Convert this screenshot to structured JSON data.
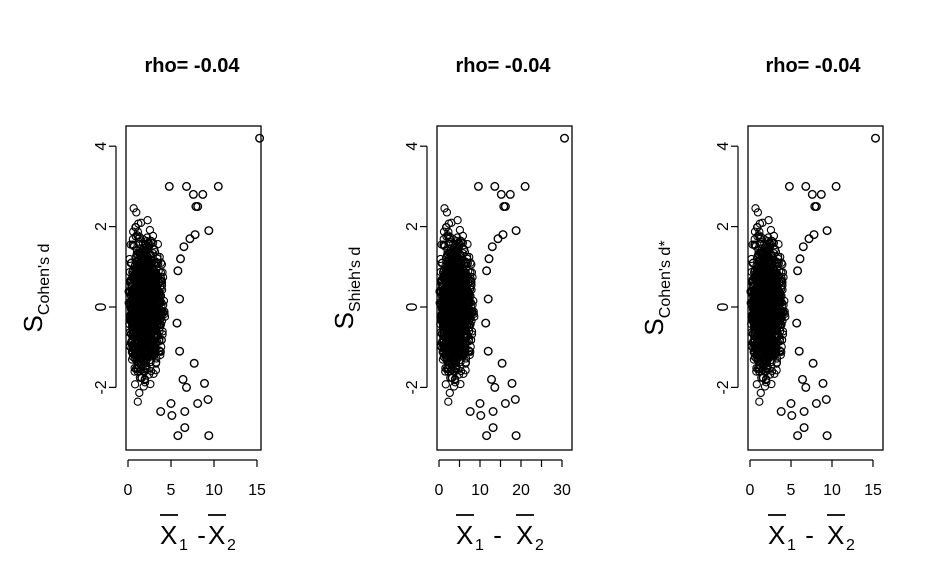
{
  "chart_data": [
    {
      "type": "scatter",
      "title": "rho= -0.04",
      "xlabel": {
        "var": "X",
        "sub1": "1",
        "minus": " - ",
        "sub2": "2"
      },
      "ylabel": {
        "base": "S",
        "sub": "Cohen's d"
      },
      "xlim": [
        0,
        15.5
      ],
      "ylim": [
        -3.5,
        4.5
      ],
      "xticks": [
        0,
        5,
        10,
        15
      ],
      "yticks": [
        -2,
        0,
        2,
        4
      ],
      "grid": false,
      "outliers": [
        {
          "x": 15.3,
          "y": 4.2
        },
        {
          "x": 10.5,
          "y": 3.0
        },
        {
          "x": 4.8,
          "y": 3.0
        },
        {
          "x": 6.8,
          "y": 3.0
        },
        {
          "x": 7.6,
          "y": 2.8
        },
        {
          "x": 8.7,
          "y": 2.8
        },
        {
          "x": 7.9,
          "y": 2.5
        },
        {
          "x": 8.1,
          "y": 2.5
        },
        {
          "x": 9.4,
          "y": 1.9
        },
        {
          "x": 7.8,
          "y": 1.8
        },
        {
          "x": 7.2,
          "y": 1.7
        },
        {
          "x": 6.5,
          "y": 1.5
        },
        {
          "x": 6.1,
          "y": 1.2
        },
        {
          "x": 5.8,
          "y": 0.9
        },
        {
          "x": 6.0,
          "y": 0.2
        },
        {
          "x": 5.7,
          "y": -0.4
        },
        {
          "x": 6.0,
          "y": -1.1
        },
        {
          "x": 7.7,
          "y": -1.4
        },
        {
          "x": 6.4,
          "y": -1.8
        },
        {
          "x": 6.8,
          "y": -2.0
        },
        {
          "x": 8.9,
          "y": -1.9
        },
        {
          "x": 8.1,
          "y": -2.4
        },
        {
          "x": 9.3,
          "y": -2.3
        },
        {
          "x": 5.0,
          "y": -2.4
        },
        {
          "x": 6.6,
          "y": -2.6
        },
        {
          "x": 3.8,
          "y": -2.6
        },
        {
          "x": 5.1,
          "y": -2.7
        },
        {
          "x": 6.6,
          "y": -3.0
        },
        {
          "x": 5.8,
          "y": -3.2
        },
        {
          "x": 9.4,
          "y": -3.2
        }
      ]
    },
    {
      "type": "scatter",
      "title": "rho= -0.04",
      "xlabel": {
        "var": "X",
        "sub1": "1",
        "minus": " - ",
        "sub2": "2"
      },
      "ylabel": {
        "base": "S",
        "sub": "Shieh's d"
      },
      "xlim": [
        0,
        31
      ],
      "ylim": [
        -3.5,
        4.5
      ],
      "xticks": [
        0,
        10,
        20,
        30
      ],
      "minor_xticks": [
        5,
        15,
        25
      ],
      "yticks": [
        -2,
        0,
        2,
        4
      ],
      "grid": false,
      "outliers": [
        {
          "x": 30.6,
          "y": 4.2
        },
        {
          "x": 21.0,
          "y": 3.0
        },
        {
          "x": 9.6,
          "y": 3.0
        },
        {
          "x": 13.6,
          "y": 3.0
        },
        {
          "x": 15.2,
          "y": 2.8
        },
        {
          "x": 17.4,
          "y": 2.8
        },
        {
          "x": 15.8,
          "y": 2.5
        },
        {
          "x": 16.2,
          "y": 2.5
        },
        {
          "x": 18.8,
          "y": 1.9
        },
        {
          "x": 15.6,
          "y": 1.8
        },
        {
          "x": 14.4,
          "y": 1.7
        },
        {
          "x": 13.0,
          "y": 1.5
        },
        {
          "x": 12.2,
          "y": 1.2
        },
        {
          "x": 11.6,
          "y": 0.9
        },
        {
          "x": 12.0,
          "y": 0.2
        },
        {
          "x": 11.4,
          "y": -0.4
        },
        {
          "x": 12.0,
          "y": -1.1
        },
        {
          "x": 15.4,
          "y": -1.4
        },
        {
          "x": 12.8,
          "y": -1.8
        },
        {
          "x": 13.6,
          "y": -2.0
        },
        {
          "x": 17.8,
          "y": -1.9
        },
        {
          "x": 16.2,
          "y": -2.4
        },
        {
          "x": 18.6,
          "y": -2.3
        },
        {
          "x": 10.0,
          "y": -2.4
        },
        {
          "x": 13.2,
          "y": -2.6
        },
        {
          "x": 7.6,
          "y": -2.6
        },
        {
          "x": 10.2,
          "y": -2.7
        },
        {
          "x": 13.2,
          "y": -3.0
        },
        {
          "x": 11.6,
          "y": -3.2
        },
        {
          "x": 18.8,
          "y": -3.2
        }
      ]
    },
    {
      "type": "scatter",
      "title": "rho= -0.04",
      "xlabel": {
        "var": "X",
        "sub1": "1",
        "minus": " - ",
        "sub2": "2"
      },
      "ylabel": {
        "base": "S",
        "sub": "Cohen's d*"
      },
      "xlim": [
        0,
        15.5
      ],
      "ylim": [
        -3.5,
        4.5
      ],
      "xticks": [
        0,
        5,
        10,
        15
      ],
      "yticks": [
        -2,
        0,
        2,
        4
      ],
      "grid": false,
      "outliers": [
        {
          "x": 15.3,
          "y": 4.2
        },
        {
          "x": 10.5,
          "y": 3.0
        },
        {
          "x": 4.8,
          "y": 3.0
        },
        {
          "x": 6.8,
          "y": 3.0
        },
        {
          "x": 7.6,
          "y": 2.8
        },
        {
          "x": 8.7,
          "y": 2.8
        },
        {
          "x": 7.9,
          "y": 2.5
        },
        {
          "x": 8.1,
          "y": 2.5
        },
        {
          "x": 9.4,
          "y": 1.9
        },
        {
          "x": 7.8,
          "y": 1.8
        },
        {
          "x": 7.2,
          "y": 1.7
        },
        {
          "x": 6.5,
          "y": 1.5
        },
        {
          "x": 6.1,
          "y": 1.2
        },
        {
          "x": 5.8,
          "y": 0.9
        },
        {
          "x": 6.0,
          "y": 0.2
        },
        {
          "x": 5.7,
          "y": -0.4
        },
        {
          "x": 6.0,
          "y": -1.1
        },
        {
          "x": 7.7,
          "y": -1.4
        },
        {
          "x": 6.4,
          "y": -1.8
        },
        {
          "x": 6.8,
          "y": -2.0
        },
        {
          "x": 8.9,
          "y": -1.9
        },
        {
          "x": 8.1,
          "y": -2.4
        },
        {
          "x": 9.3,
          "y": -2.3
        },
        {
          "x": 5.0,
          "y": -2.4
        },
        {
          "x": 6.6,
          "y": -2.6
        },
        {
          "x": 3.8,
          "y": -2.6
        },
        {
          "x": 5.1,
          "y": -2.7
        },
        {
          "x": 6.6,
          "y": -3.0
        },
        {
          "x": 5.8,
          "y": -3.2
        },
        {
          "x": 9.4,
          "y": -3.2
        }
      ]
    }
  ]
}
